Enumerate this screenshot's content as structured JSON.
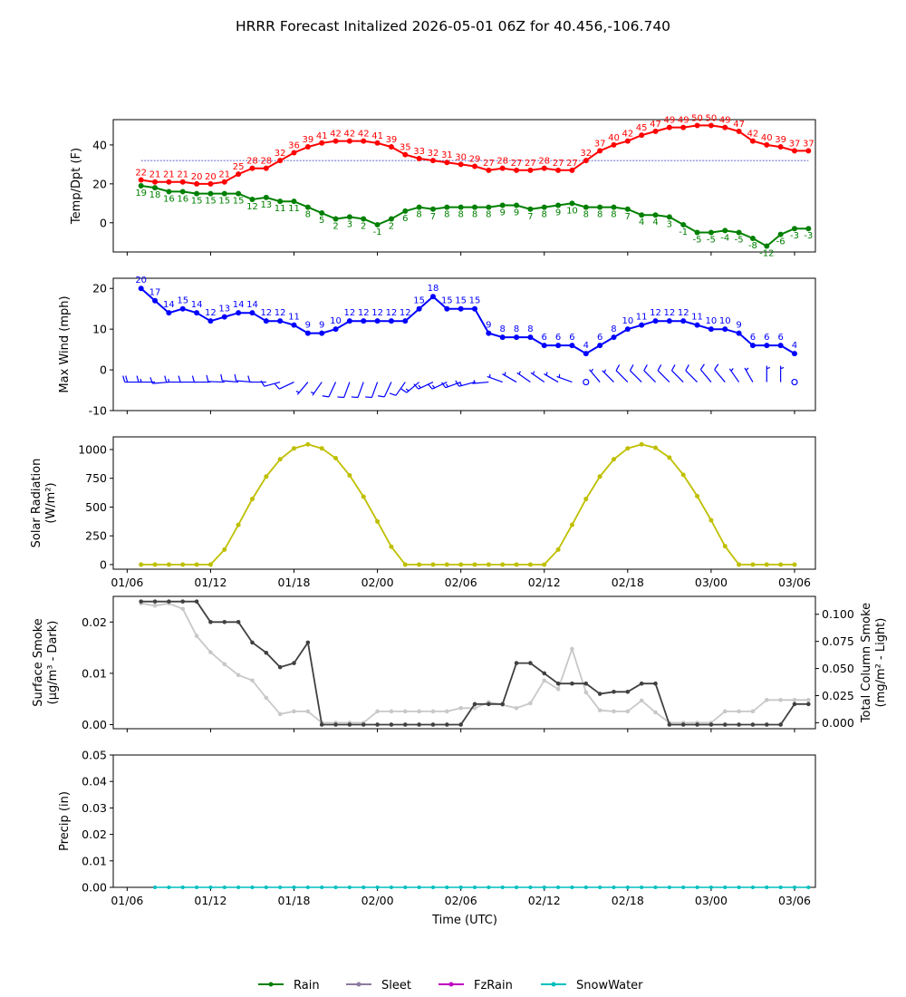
{
  "title": "HRRR Forecast Initalized 2026-05-01 06Z for 40.456,-106.740",
  "colors": {
    "temp": "#ff0000",
    "dewpoint": "#008000",
    "wind": "#0000ff",
    "solar": "#bfbf00",
    "smoke_dark": "#404040",
    "smoke_light": "#c8c8c8",
    "rain": "#008000",
    "sleet": "#8c7a9e",
    "fzrain": "#c000c0",
    "snowwater": "#00bfbf"
  },
  "time_axis": {
    "start_hour": 7,
    "end_hour": 55,
    "ticks": [
      {
        "hour": 6,
        "label": "01/06"
      },
      {
        "hour": 12,
        "label": "01/12"
      },
      {
        "hour": 18,
        "label": "01/18"
      },
      {
        "hour": 24,
        "label": "02/00"
      },
      {
        "hour": 30,
        "label": "02/06"
      },
      {
        "hour": 36,
        "label": "02/12"
      },
      {
        "hour": 42,
        "label": "02/18"
      },
      {
        "hour": 48,
        "label": "03/00"
      },
      {
        "hour": 54,
        "label": "03/06"
      }
    ],
    "xlabel": "Time (UTC)"
  },
  "chart_data": [
    {
      "type": "line",
      "panel": "temperature",
      "ylabel": "Temp/Dpt (F)",
      "ylim": [
        -15,
        53
      ],
      "yticks": [
        0,
        20,
        40
      ],
      "freezing_line": 32,
      "series": [
        {
          "key": "temp",
          "values": [
            22,
            21,
            21,
            21,
            20,
            20,
            21,
            25,
            28,
            28,
            32,
            36,
            39,
            41,
            42,
            42,
            42,
            41,
            39,
            35,
            33,
            32,
            31,
            30,
            29,
            27,
            28,
            27,
            27,
            28,
            27,
            27,
            32,
            37,
            40,
            42,
            45,
            47,
            49,
            49,
            50,
            50,
            49,
            47,
            42,
            40,
            39,
            37,
            37
          ]
        },
        {
          "key": "dewpoint",
          "values": [
            19,
            18,
            16,
            16,
            15,
            15,
            15,
            15,
            12,
            13,
            11,
            11,
            8,
            5,
            2,
            3,
            2,
            -1,
            2,
            6,
            8,
            7,
            8,
            8,
            8,
            8,
            9,
            9,
            7,
            8,
            9,
            10,
            8,
            8,
            8,
            7,
            4,
            4,
            3,
            -1,
            -5,
            -5,
            -4,
            -5,
            -8,
            -12,
            -6,
            -3,
            -3
          ]
        }
      ],
      "value_labels": {
        "temp": [
          "22",
          "21",
          "21",
          "21",
          "20",
          "20",
          "21",
          "25",
          "28",
          "28",
          "32",
          "36",
          "39",
          "41",
          "42",
          "42",
          "42",
          "41",
          "39",
          "35",
          "33",
          "32",
          "31",
          "30",
          "29",
          "27",
          "28",
          "27",
          "27",
          "28",
          "27",
          "27",
          "32",
          "37",
          "40",
          "42",
          "45",
          "47",
          "49",
          "49",
          "50",
          "50",
          "49",
          "47",
          "42",
          "40",
          "39",
          "37",
          "37"
        ],
        "dewpoint": [
          "19",
          "18",
          "16",
          "16",
          "15",
          "15",
          "15",
          "15",
          "12",
          "13",
          "11",
          "11",
          "8",
          "5",
          "2",
          "3",
          "2",
          "-1",
          "2",
          "6",
          "8",
          "7",
          "8",
          "8",
          "8",
          "8",
          "9",
          "9",
          "7",
          "8",
          "9",
          "10",
          "8",
          "8",
          "8",
          "7",
          "4",
          "4",
          "3",
          "-1",
          "-5",
          "-5",
          "-4",
          "-5",
          "-8",
          "-12",
          "-6",
          "-3",
          "-3"
        ]
      }
    },
    {
      "type": "line",
      "panel": "wind",
      "ylabel": "Max Wind (mph)",
      "ylim": [
        -10,
        22.5
      ],
      "yticks": [
        -10,
        0,
        10,
        20
      ],
      "series": [
        {
          "key": "wind",
          "values": [
            20,
            17,
            14,
            15,
            14,
            12,
            13,
            14,
            14,
            12,
            12,
            11,
            9,
            9,
            10,
            12,
            12,
            12,
            12,
            12,
            15,
            18,
            15,
            15,
            15,
            9,
            8,
            8,
            8,
            6,
            6,
            6,
            4,
            6,
            8,
            10,
            11,
            12,
            12,
            12,
            11,
            10,
            10,
            9,
            6,
            6,
            6,
            4
          ]
        }
      ],
      "value_labels": [
        "20",
        "17",
        "14",
        "15",
        "14",
        "12",
        "13",
        "14",
        "14",
        "12",
        "12",
        "11",
        "9",
        "9",
        "10",
        "12",
        "12",
        "12",
        "12",
        "12",
        "15",
        "18",
        "15",
        "15",
        "15",
        "9",
        "8",
        "8",
        "8",
        "6",
        "6",
        "6",
        "4",
        "6",
        "8",
        "10",
        "11",
        "12",
        "12",
        "12",
        "11",
        "10",
        "10",
        "9",
        "6",
        "6",
        "6",
        "4"
      ],
      "barb_directions_deg": [
        270,
        270,
        265,
        270,
        270,
        270,
        272,
        275,
        275,
        270,
        255,
        245,
        220,
        215,
        205,
        200,
        200,
        200,
        205,
        215,
        230,
        245,
        245,
        250,
        255,
        265,
        290,
        300,
        305,
        305,
        300,
        290,
        335,
        320,
        315,
        315,
        315,
        315,
        315,
        315,
        315,
        320,
        320,
        325,
        330,
        360,
        360,
        0
      ]
    },
    {
      "type": "line",
      "panel": "solar",
      "ylabel": "Solar Radiation",
      "ylabel_units": "(W/m²)",
      "ylim": [
        -40,
        1110
      ],
      "yticks": [
        0,
        250,
        500,
        750,
        1000
      ],
      "series": [
        {
          "key": "solar",
          "values": [
            0,
            0,
            0,
            0,
            0,
            0,
            130,
            345,
            570,
            765,
            915,
            1010,
            1045,
            1010,
            925,
            775,
            590,
            375,
            155,
            0,
            0,
            0,
            0,
            0,
            0,
            0,
            0,
            0,
            0,
            0,
            130,
            345,
            570,
            765,
            915,
            1010,
            1045,
            1015,
            930,
            780,
            595,
            385,
            160,
            0,
            0,
            0,
            0,
            0
          ]
        }
      ]
    },
    {
      "type": "line",
      "panel": "smoke",
      "ylabel": "Surface Smoke",
      "ylabel_units": "(μg/m³ - Dark)",
      "ylabel_right": "Total Column Smoke",
      "ylabel_right_units": "(mg/m² - Light)",
      "ylim": [
        -0.0008,
        0.025
      ],
      "yticks": [
        0.0,
        0.01,
        0.02
      ],
      "ylim_right": [
        -0.0055,
        0.1165
      ],
      "yticks_right": [
        0.0,
        0.025,
        0.05,
        0.075,
        0.1
      ],
      "series": [
        {
          "key": "smoke_dark",
          "axis": "left",
          "values": [
            0.024,
            0.024,
            0.024,
            0.024,
            0.024,
            0.02,
            0.02,
            0.02,
            0.016,
            0.014,
            0.0112,
            0.012,
            0.016,
            0,
            0,
            0,
            0,
            0,
            0,
            0,
            0,
            0,
            0,
            0,
            0.004,
            0.004,
            0.004,
            0.012,
            0.012,
            0.01,
            0.008,
            0.008,
            0.008,
            0.006,
            0.0064,
            0.0064,
            0.008,
            0.008,
            0,
            0,
            0,
            0,
            0,
            0,
            0,
            0,
            0,
            0.004,
            0.004
          ]
        },
        {
          "key": "smoke_light",
          "axis": "right",
          "values": [
            0.11,
            0.108,
            0.11,
            0.105,
            0.08,
            0.065,
            0.054,
            0.044,
            0.039,
            0.023,
            0.008,
            0.0105,
            0.0105,
            0,
            0,
            0,
            0,
            0.0105,
            0.0105,
            0.0105,
            0.0105,
            0.0105,
            0.0105,
            0.0135,
            0.0135,
            0.019,
            0.0165,
            0.0135,
            0.018,
            0.039,
            0.031,
            0.068,
            0.028,
            0.0115,
            0.0105,
            0.0105,
            0.0205,
            0.0095,
            0,
            0,
            0,
            0,
            0.0105,
            0.0105,
            0.0105,
            0.021,
            0.021,
            0.021,
            0.021
          ]
        }
      ]
    },
    {
      "type": "line",
      "panel": "precip",
      "ylabel": "Precip (in)",
      "ylim": [
        0,
        0.05
      ],
      "yticks": [
        0.0,
        0.01,
        0.02,
        0.03,
        0.04,
        0.05
      ],
      "series": [
        {
          "key": "snowwater",
          "values": [
            0,
            0,
            0,
            0,
            0,
            0,
            0,
            0,
            0,
            0,
            0,
            0,
            0,
            0,
            0,
            0,
            0,
            0,
            0,
            0,
            0,
            0,
            0,
            0,
            0,
            0,
            0,
            0,
            0,
            0,
            0,
            0,
            0,
            0,
            0,
            0,
            0,
            0,
            0,
            0,
            0,
            0,
            0,
            0,
            0,
            0,
            0,
            0
          ]
        }
      ]
    }
  ],
  "legend": [
    {
      "label": "Rain",
      "color_key": "rain"
    },
    {
      "label": "Sleet",
      "color_key": "sleet"
    },
    {
      "label": "FzRain",
      "color_key": "fzrain"
    },
    {
      "label": "SnowWater",
      "color_key": "snowwater"
    }
  ]
}
